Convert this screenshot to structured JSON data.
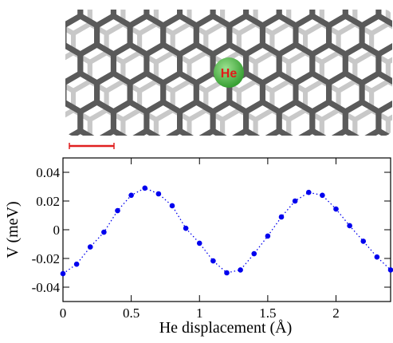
{
  "chart_data": {
    "type": "line",
    "atom_label": "He",
    "ylabel": "V (meV)",
    "xlabel": "He displacement (Å)",
    "x": [
      0,
      0.1,
      0.2,
      0.3,
      0.4,
      0.5,
      0.6,
      0.7,
      0.8,
      0.9,
      1.0,
      1.1,
      1.2,
      1.3,
      1.4,
      1.5,
      1.6,
      1.7,
      1.8,
      1.9,
      2.0,
      2.1,
      2.2,
      2.3,
      2.4
    ],
    "series": [
      {
        "color": "#0000ee",
        "values": [
          -0.0306,
          -0.024,
          -0.012,
          -0.0017,
          0.0133,
          0.024,
          0.029,
          0.025,
          0.0167,
          0.001,
          -0.0094,
          -0.0217,
          -0.03,
          -0.028,
          -0.0167,
          -0.0044,
          0.0089,
          0.02,
          0.026,
          0.024,
          0.0144,
          0.0028,
          -0.008,
          -0.019,
          -0.028
        ]
      }
    ],
    "xlim": [
      0,
      2.4
    ],
    "ylim": [
      -0.05,
      0.05
    ],
    "xticks": [
      0,
      0.5,
      1,
      1.5,
      2
    ],
    "yticks": [
      -0.04,
      -0.02,
      0,
      0.02,
      0.04
    ]
  }
}
